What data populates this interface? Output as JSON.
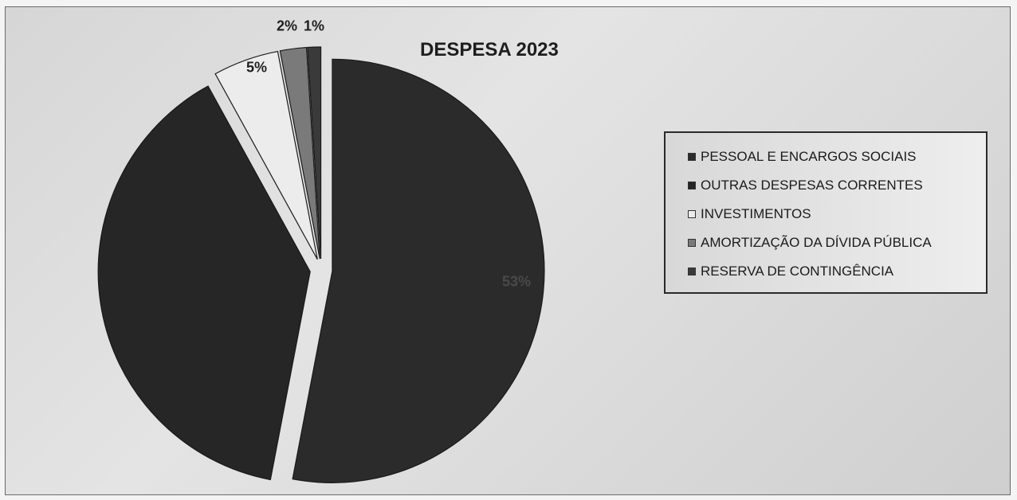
{
  "chart_data": {
    "type": "pie",
    "title": "DESPESA 2023",
    "categories": [
      "PESSOAL E ENCARGOS SOCIAIS",
      "OUTRAS DESPESAS CORRENTES",
      "INVESTIMENTOS",
      "AMORTIZAÇÃO DA DÍVIDA PÚBLICA",
      "RESERVA DE CONTINGÊNCIA"
    ],
    "values": [
      53,
      39,
      5,
      2,
      1
    ],
    "data_labels": [
      "53%",
      "",
      "5%",
      "2%",
      "1%"
    ],
    "colors": [
      "#2b2b2b",
      "#262626",
      "#ececec",
      "#7a7a7a",
      "#3a3a3a"
    ],
    "legend_position": "right"
  }
}
